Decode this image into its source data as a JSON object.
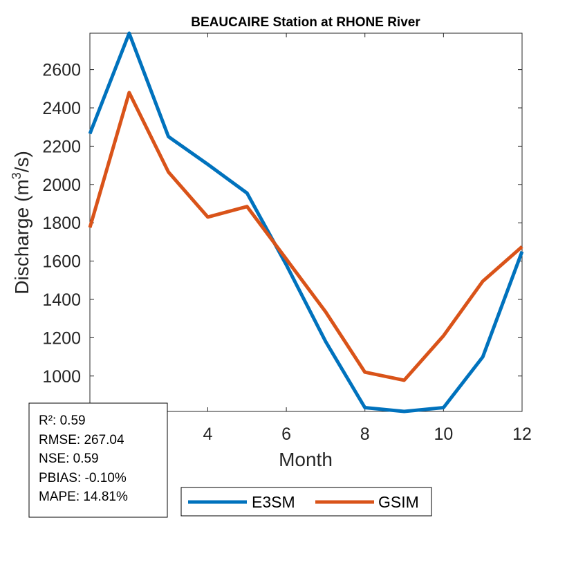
{
  "chart_data": {
    "type": "line",
    "title": "BEAUCAIRE  Station at  RHONE  River",
    "xlabel": "Month",
    "ylabel": "Discharge (m³/s)",
    "ylabel_parts": {
      "main": "Discharge (m",
      "sup": "3",
      "tail": "/s)"
    },
    "xlim": [
      1,
      12
    ],
    "ylim": [
      815,
      2790
    ],
    "x": [
      1,
      2,
      3,
      4,
      5,
      6,
      7,
      8,
      9,
      10,
      11,
      12
    ],
    "xticks": [
      4,
      6,
      8,
      10,
      12
    ],
    "xtick_labels": [
      "4",
      "6",
      "8",
      "10",
      "12"
    ],
    "yticks": [
      1000,
      1200,
      1400,
      1600,
      1800,
      2000,
      2200,
      2400,
      2600
    ],
    "ytick_labels": [
      "1000",
      "1200",
      "1400",
      "1600",
      "1800",
      "2000",
      "2200",
      "2400",
      "2600"
    ],
    "grid": false,
    "legend_position": "bottom-outside",
    "series": [
      {
        "name": "E3SM",
        "color": "#0072BD",
        "values": [
          2265,
          2790,
          2250,
          2105,
          1955,
          1580,
          1180,
          835,
          815,
          835,
          1100,
          1650
        ]
      },
      {
        "name": "GSIM",
        "color": "#D95319",
        "values": [
          1775,
          2480,
          2065,
          1830,
          1885,
          1610,
          1335,
          1020,
          978,
          1210,
          1495,
          1675
        ]
      }
    ]
  },
  "stats": {
    "r2": "R²: 0.59",
    "rmse": "RMSE: 267.04",
    "nse": "NSE: 0.59",
    "pbias": "PBIAS: -0.10%",
    "mape": "MAPE: 14.81%"
  }
}
